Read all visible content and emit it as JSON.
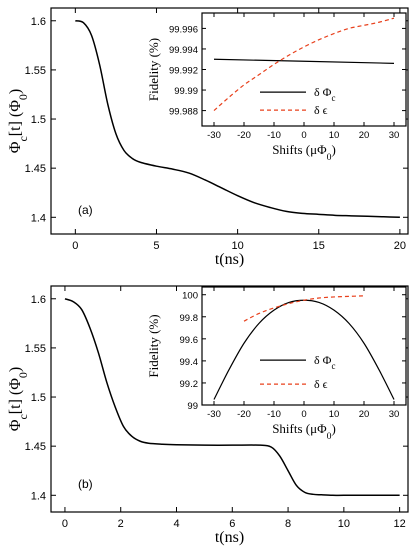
{
  "chart_data": [
    {
      "type": "line",
      "panel_label": "(a)",
      "xlabel": "t(ns)",
      "ylabel": "Φc[t] (Φ0)",
      "xlim": [
        -1.5,
        20.5
      ],
      "ylim": [
        1.383,
        1.613
      ],
      "xticks": [
        "0",
        "5",
        "10",
        "15",
        "20"
      ],
      "yticks": [
        "1.4",
        "1.45",
        "1.5",
        "1.55",
        "1.6"
      ],
      "series": [
        {
          "color": "#000000",
          "x": [
            0,
            0.5,
            1,
            1.5,
            2,
            2.5,
            3,
            3.5,
            4,
            5,
            6,
            7,
            8,
            9,
            10,
            11,
            12,
            13,
            14,
            15,
            16,
            17,
            18,
            19,
            20
          ],
          "y": [
            1.6,
            1.598,
            1.585,
            1.555,
            1.515,
            1.485,
            1.468,
            1.46,
            1.456,
            1.452,
            1.449,
            1.445,
            1.438,
            1.43,
            1.422,
            1.415,
            1.41,
            1.406,
            1.404,
            1.403,
            1.402,
            1.4015,
            1.401,
            1.4005,
            1.4
          ]
        }
      ],
      "inset": {
        "xlabel": "Shifts (μΦ0)",
        "ylabel": "Fidelity (%)",
        "xlim": [
          -34,
          34
        ],
        "ylim": [
          99.9865,
          99.9975
        ],
        "xticks": [
          "-30",
          "-20",
          "-10",
          "0",
          "10",
          "20",
          "30"
        ],
        "yticks": [
          "99.988",
          "99.99",
          "99.992",
          "99.994",
          "99.996"
        ],
        "legend": [
          "δ Φ",
          "c",
          "δ ϵ"
        ],
        "series": [
          {
            "color": "#000000",
            "dash": "solid",
            "x": [
              -30,
              30
            ],
            "y": [
              99.993,
              99.9926
            ]
          },
          {
            "color": "#e8401c",
            "dash": "dashed",
            "x": [
              -30,
              -25,
              -20,
              -15,
              -10,
              -5,
              0,
              5,
              10,
              15,
              20,
              25,
              30
            ],
            "y": [
              99.988,
              99.9893,
              99.9905,
              99.9915,
              99.9925,
              99.9934,
              99.9942,
              99.9949,
              99.9955,
              99.996,
              99.9963,
              99.9966,
              99.997
            ]
          }
        ]
      }
    },
    {
      "type": "line",
      "panel_label": "(b)",
      "xlabel": "t(ns)",
      "ylabel": "Φc[t] (Φ0)",
      "xlim": [
        -0.5,
        12.3
      ],
      "ylim": [
        1.383,
        1.613
      ],
      "xticks": [
        "0",
        "2",
        "4",
        "6",
        "8",
        "10",
        "12"
      ],
      "yticks": [
        "1.4",
        "1.45",
        "1.5",
        "1.55",
        "1.6"
      ],
      "series": [
        {
          "color": "#000000",
          "x": [
            0,
            0.3,
            0.6,
            0.9,
            1.2,
            1.5,
            1.8,
            2.1,
            2.4,
            2.7,
            3,
            3.5,
            4,
            5,
            6,
            7,
            7.4,
            7.7,
            8,
            8.3,
            8.6,
            8.9,
            9.2,
            9.6,
            10,
            11,
            12
          ],
          "y": [
            1.6,
            1.597,
            1.589,
            1.57,
            1.545,
            1.515,
            1.49,
            1.47,
            1.46,
            1.455,
            1.453,
            1.452,
            1.4515,
            1.451,
            1.451,
            1.451,
            1.449,
            1.44,
            1.425,
            1.41,
            1.403,
            1.401,
            1.4005,
            1.4,
            1.4,
            1.4,
            1.4
          ]
        }
      ],
      "inset": {
        "xlabel": "Shifts (μΦ0)",
        "ylabel": "Fidelity (%)",
        "xlim": [
          -34,
          34
        ],
        "ylim": [
          99.0,
          100.07
        ],
        "xticks": [
          "-30",
          "-20",
          "-10",
          "0",
          "10",
          "20",
          "30"
        ],
        "yticks": [
          "99",
          "99.2",
          "99.4",
          "99.6",
          "99.8",
          "100"
        ],
        "legend": [
          "δ Φ",
          "c",
          "δ ϵ"
        ],
        "series": [
          {
            "color": "#000000",
            "dash": "solid",
            "x": [
              -30,
              -25,
              -20,
              -15,
              -10,
              -5,
              0,
              5,
              10,
              15,
              20,
              25,
              30
            ],
            "y": [
              99.05,
              99.32,
              99.56,
              99.74,
              99.86,
              99.93,
              99.95,
              99.93,
              99.86,
              99.74,
              99.56,
              99.32,
              99.05
            ]
          },
          {
            "color": "#e8401c",
            "dash": "dashed",
            "x": [
              -20,
              -15,
              -10,
              -5,
              0,
              5,
              10,
              15,
              20
            ],
            "y": [
              99.76,
              99.83,
              99.88,
              99.92,
              99.95,
              99.97,
              99.98,
              99.985,
              99.99
            ]
          }
        ]
      }
    }
  ]
}
